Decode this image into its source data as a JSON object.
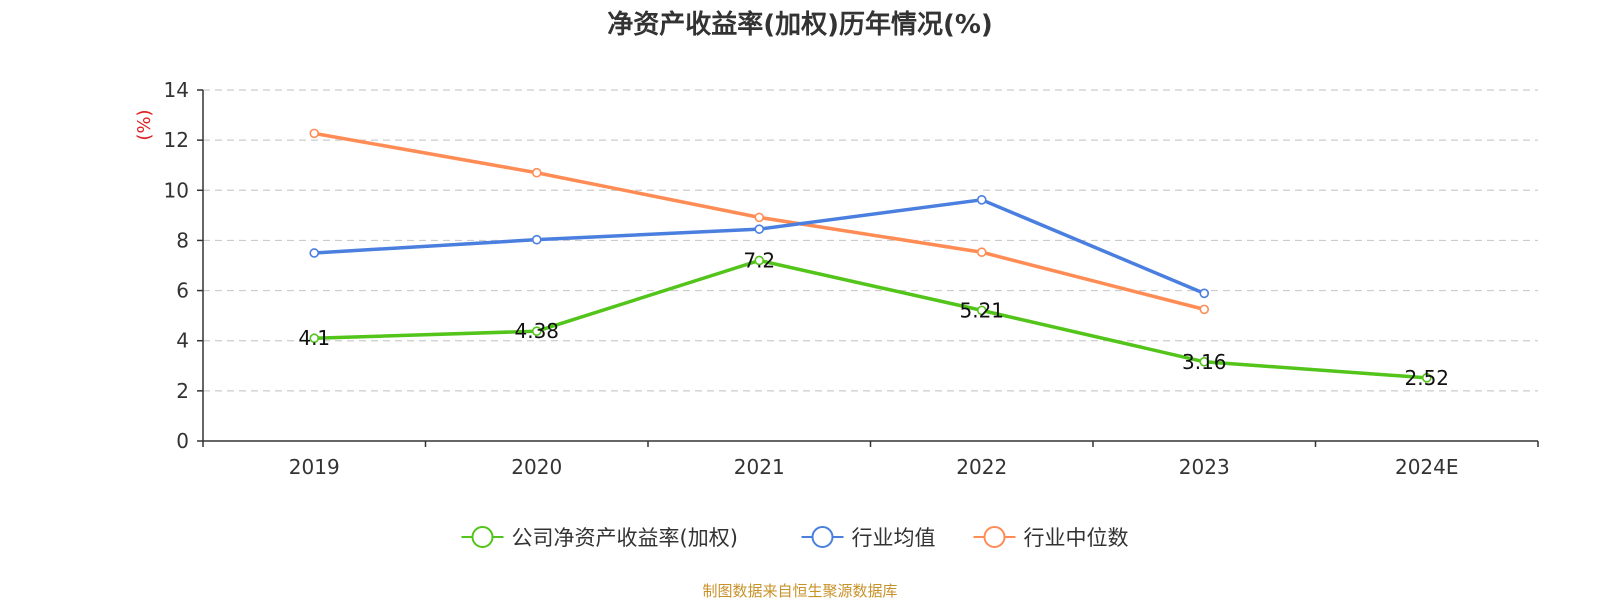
{
  "chart_data": {
    "type": "line",
    "title": "净资产收益率(加权)历年情况(%)",
    "ylabel": "(%)",
    "xlabel": "",
    "categories": [
      "2019",
      "2020",
      "2021",
      "2022",
      "2023",
      "2024E"
    ],
    "ylim": [
      0,
      14
    ],
    "yticks": [
      0,
      2,
      4,
      6,
      8,
      10,
      12,
      14
    ],
    "grid": true,
    "legend_position": "bottom",
    "series": [
      {
        "name": "公司净资产收益率(加权)",
        "color": "#52c41a",
        "values": [
          4.1,
          4.38,
          7.2,
          5.21,
          3.16,
          2.52
        ],
        "show_labels": true
      },
      {
        "name": "行业均值",
        "color": "#4a7fe0",
        "values": [
          7.5,
          8.03,
          8.45,
          9.62,
          5.89,
          null
        ],
        "show_labels": false
      },
      {
        "name": "行业中位数",
        "color": "#ff8c55",
        "values": [
          12.27,
          10.7,
          8.92,
          7.53,
          5.25,
          null
        ],
        "show_labels": false
      }
    ]
  },
  "ylabel_color": "#e02020",
  "footer": {
    "text": "制图数据来自恒生聚源数据库",
    "color": "#c8922a"
  }
}
